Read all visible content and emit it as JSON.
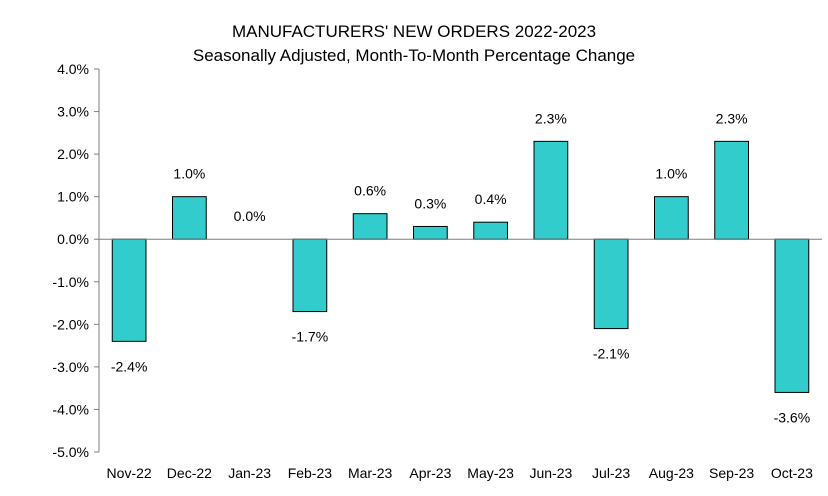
{
  "chart_data": {
    "type": "bar",
    "title": "MANUFACTURERS' NEW ORDERS 2022-2023",
    "subtitle": "Seasonally Adjusted,  Month-To-Month Percentage Change",
    "categories": [
      "Nov-22",
      "Dec-22",
      "Jan-23",
      "Feb-23",
      "Mar-23",
      "Apr-23",
      "May-23",
      "Jun-23",
      "Jul-23",
      "Aug-23",
      "Sep-23",
      "Oct-23"
    ],
    "values": [
      -2.4,
      1.0,
      0.0,
      -1.7,
      0.6,
      0.3,
      0.4,
      2.3,
      -2.1,
      1.0,
      2.3,
      -3.6
    ],
    "data_labels": [
      "-2.4%",
      "1.0%",
      "0.0%",
      "-1.7%",
      "0.6%",
      "0.3%",
      "0.4%",
      "2.3%",
      "-2.1%",
      "1.0%",
      "2.3%",
      "-3.6%"
    ],
    "ylim": [
      -5.0,
      4.0
    ],
    "yticks": [
      "4.0%",
      "3.0%",
      "2.0%",
      "1.0%",
      "0.0%",
      "-1.0%",
      "-2.0%",
      "-3.0%",
      "-4.0%",
      "-5.0%"
    ],
    "ytick_values": [
      4,
      3,
      2,
      1,
      0,
      -1,
      -2,
      -3,
      -4,
      -5
    ],
    "xlabel": "",
    "ylabel": "",
    "grid": false,
    "bar_color": "#33CCCC",
    "bar_edge_color": "#000000"
  }
}
